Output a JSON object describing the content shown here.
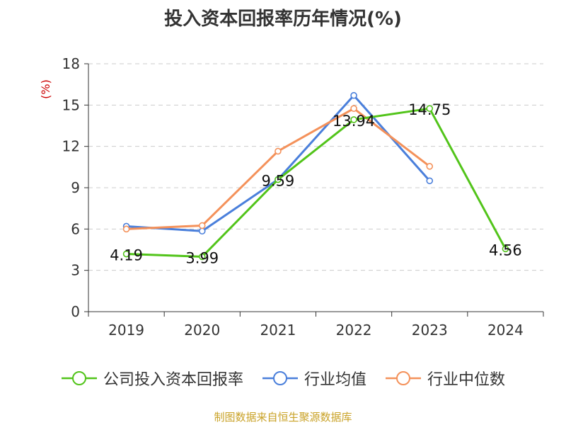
{
  "chart_data": {
    "type": "line",
    "title": "投入资本回报率历年情况(%)",
    "ylabel": "(%)",
    "xlabel": "",
    "categories": [
      "2019",
      "2020",
      "2021",
      "2022",
      "2023",
      "2024"
    ],
    "yticks": [
      "0",
      "3",
      "6",
      "9",
      "12",
      "15",
      "18"
    ],
    "ylim": [
      0,
      18
    ],
    "grid": "horizontal dashed",
    "legend_position": "bottom",
    "series": [
      {
        "name": "公司投入资本回报率",
        "color": "#52c41a",
        "values": [
          4.19,
          3.99,
          9.59,
          13.94,
          14.75,
          4.56
        ],
        "labels": [
          "4.19",
          "3.99",
          "9.59",
          "13.94",
          "14.75",
          "4.56"
        ]
      },
      {
        "name": "行业均值",
        "color": "#4a7fdb",
        "values": [
          6.2,
          5.85,
          9.6,
          15.7,
          9.5,
          null
        ]
      },
      {
        "name": "行业中位数",
        "color": "#f4915a",
        "values": [
          6.0,
          6.25,
          11.65,
          14.75,
          10.55,
          null
        ]
      }
    ]
  },
  "footer": {
    "source": "制图数据来自恒生聚源数据库"
  }
}
